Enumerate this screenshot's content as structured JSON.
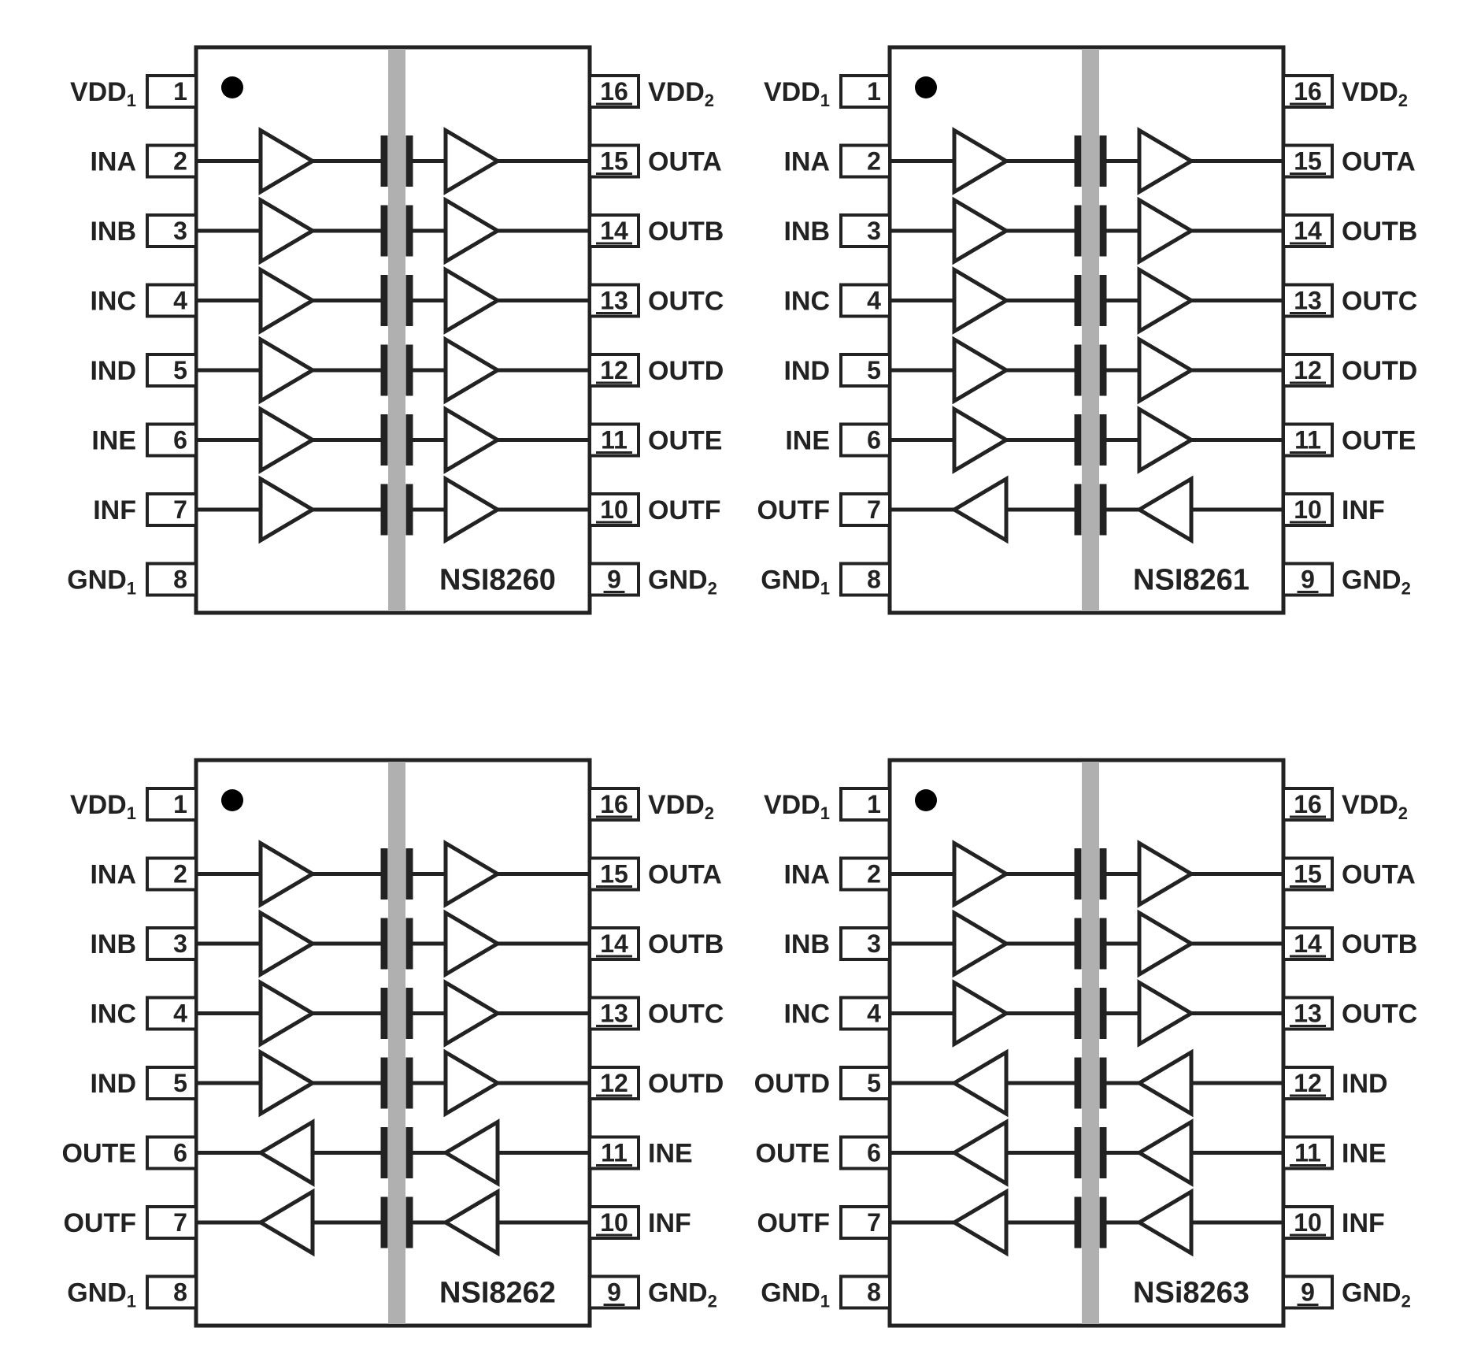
{
  "diagram": {
    "background_color": "#ffffff",
    "ink_color": "#222222",
    "barrier_color": "#b0b0b0",
    "chips": [
      {
        "name": "NSI8260",
        "position": "top-left",
        "left_pins": [
          {
            "pin": "1",
            "label": "VDD₁"
          },
          {
            "pin": "2",
            "label": "INA"
          },
          {
            "pin": "3",
            "label": "INB"
          },
          {
            "pin": "4",
            "label": "INC"
          },
          {
            "pin": "5",
            "label": "IND"
          },
          {
            "pin": "6",
            "label": "INE"
          },
          {
            "pin": "7",
            "label": "INF"
          },
          {
            "pin": "8",
            "label": "GND₁"
          }
        ],
        "right_pins": [
          {
            "pin": "16",
            "label": "VDD₂"
          },
          {
            "pin": "15",
            "label": "OUTA"
          },
          {
            "pin": "14",
            "label": "OUTB"
          },
          {
            "pin": "13",
            "label": "OUTC"
          },
          {
            "pin": "12",
            "label": "OUTD"
          },
          {
            "pin": "11",
            "label": "OUTE"
          },
          {
            "pin": "10",
            "label": "OUTF"
          },
          {
            "pin": "9",
            "label": "GND₂"
          }
        ],
        "channels": [
          {
            "name": "A",
            "direction": "left-to-right"
          },
          {
            "name": "B",
            "direction": "left-to-right"
          },
          {
            "name": "C",
            "direction": "left-to-right"
          },
          {
            "name": "D",
            "direction": "left-to-right"
          },
          {
            "name": "E",
            "direction": "left-to-right"
          },
          {
            "name": "F",
            "direction": "left-to-right"
          }
        ]
      },
      {
        "name": "NSI8261",
        "position": "top-right",
        "left_pins": [
          {
            "pin": "1",
            "label": "VDD₁"
          },
          {
            "pin": "2",
            "label": "INA"
          },
          {
            "pin": "3",
            "label": "INB"
          },
          {
            "pin": "4",
            "label": "INC"
          },
          {
            "pin": "5",
            "label": "IND"
          },
          {
            "pin": "6",
            "label": "INE"
          },
          {
            "pin": "7",
            "label": "OUTF"
          },
          {
            "pin": "8",
            "label": "GND₁"
          }
        ],
        "right_pins": [
          {
            "pin": "16",
            "label": "VDD₂"
          },
          {
            "pin": "15",
            "label": "OUTA"
          },
          {
            "pin": "14",
            "label": "OUTB"
          },
          {
            "pin": "13",
            "label": "OUTC"
          },
          {
            "pin": "12",
            "label": "OUTD"
          },
          {
            "pin": "11",
            "label": "OUTE"
          },
          {
            "pin": "10",
            "label": "INF"
          },
          {
            "pin": "9",
            "label": "GND₂"
          }
        ],
        "channels": [
          {
            "name": "A",
            "direction": "left-to-right"
          },
          {
            "name": "B",
            "direction": "left-to-right"
          },
          {
            "name": "C",
            "direction": "left-to-right"
          },
          {
            "name": "D",
            "direction": "left-to-right"
          },
          {
            "name": "E",
            "direction": "left-to-right"
          },
          {
            "name": "F",
            "direction": "right-to-left"
          }
        ]
      },
      {
        "name": "NSI8262",
        "position": "bottom-left",
        "left_pins": [
          {
            "pin": "1",
            "label": "VDD₁"
          },
          {
            "pin": "2",
            "label": "INA"
          },
          {
            "pin": "3",
            "label": "INB"
          },
          {
            "pin": "4",
            "label": "INC"
          },
          {
            "pin": "5",
            "label": "IND"
          },
          {
            "pin": "6",
            "label": "OUTE"
          },
          {
            "pin": "7",
            "label": "OUTF"
          },
          {
            "pin": "8",
            "label": "GND₁"
          }
        ],
        "right_pins": [
          {
            "pin": "16",
            "label": "VDD₂"
          },
          {
            "pin": "15",
            "label": "OUTA"
          },
          {
            "pin": "14",
            "label": "OUTB"
          },
          {
            "pin": "13",
            "label": "OUTC"
          },
          {
            "pin": "12",
            "label": "OUTD"
          },
          {
            "pin": "11",
            "label": "INE"
          },
          {
            "pin": "10",
            "label": "INF"
          },
          {
            "pin": "9",
            "label": "GND₂"
          }
        ],
        "channels": [
          {
            "name": "A",
            "direction": "left-to-right"
          },
          {
            "name": "B",
            "direction": "left-to-right"
          },
          {
            "name": "C",
            "direction": "left-to-right"
          },
          {
            "name": "D",
            "direction": "left-to-right"
          },
          {
            "name": "E",
            "direction": "right-to-left"
          },
          {
            "name": "F",
            "direction": "right-to-left"
          }
        ]
      },
      {
        "name": "NSi8263",
        "position": "bottom-right",
        "left_pins": [
          {
            "pin": "1",
            "label": "VDD₁"
          },
          {
            "pin": "2",
            "label": "INA"
          },
          {
            "pin": "3",
            "label": "INB"
          },
          {
            "pin": "4",
            "label": "INC"
          },
          {
            "pin": "5",
            "label": "OUTD"
          },
          {
            "pin": "6",
            "label": "OUTE"
          },
          {
            "pin": "7",
            "label": "OUTF"
          },
          {
            "pin": "8",
            "label": "GND₁"
          }
        ],
        "right_pins": [
          {
            "pin": "16",
            "label": "VDD₂"
          },
          {
            "pin": "15",
            "label": "OUTA"
          },
          {
            "pin": "14",
            "label": "OUTB"
          },
          {
            "pin": "13",
            "label": "OUTC"
          },
          {
            "pin": "12",
            "label": "IND"
          },
          {
            "pin": "11",
            "label": "INE"
          },
          {
            "pin": "10",
            "label": "INF"
          },
          {
            "pin": "9",
            "label": "GND₂"
          }
        ],
        "channels": [
          {
            "name": "A",
            "direction": "left-to-right"
          },
          {
            "name": "B",
            "direction": "left-to-right"
          },
          {
            "name": "C",
            "direction": "left-to-right"
          },
          {
            "name": "D",
            "direction": "right-to-left"
          },
          {
            "name": "E",
            "direction": "right-to-left"
          },
          {
            "name": "F",
            "direction": "right-to-left"
          }
        ]
      }
    ]
  }
}
